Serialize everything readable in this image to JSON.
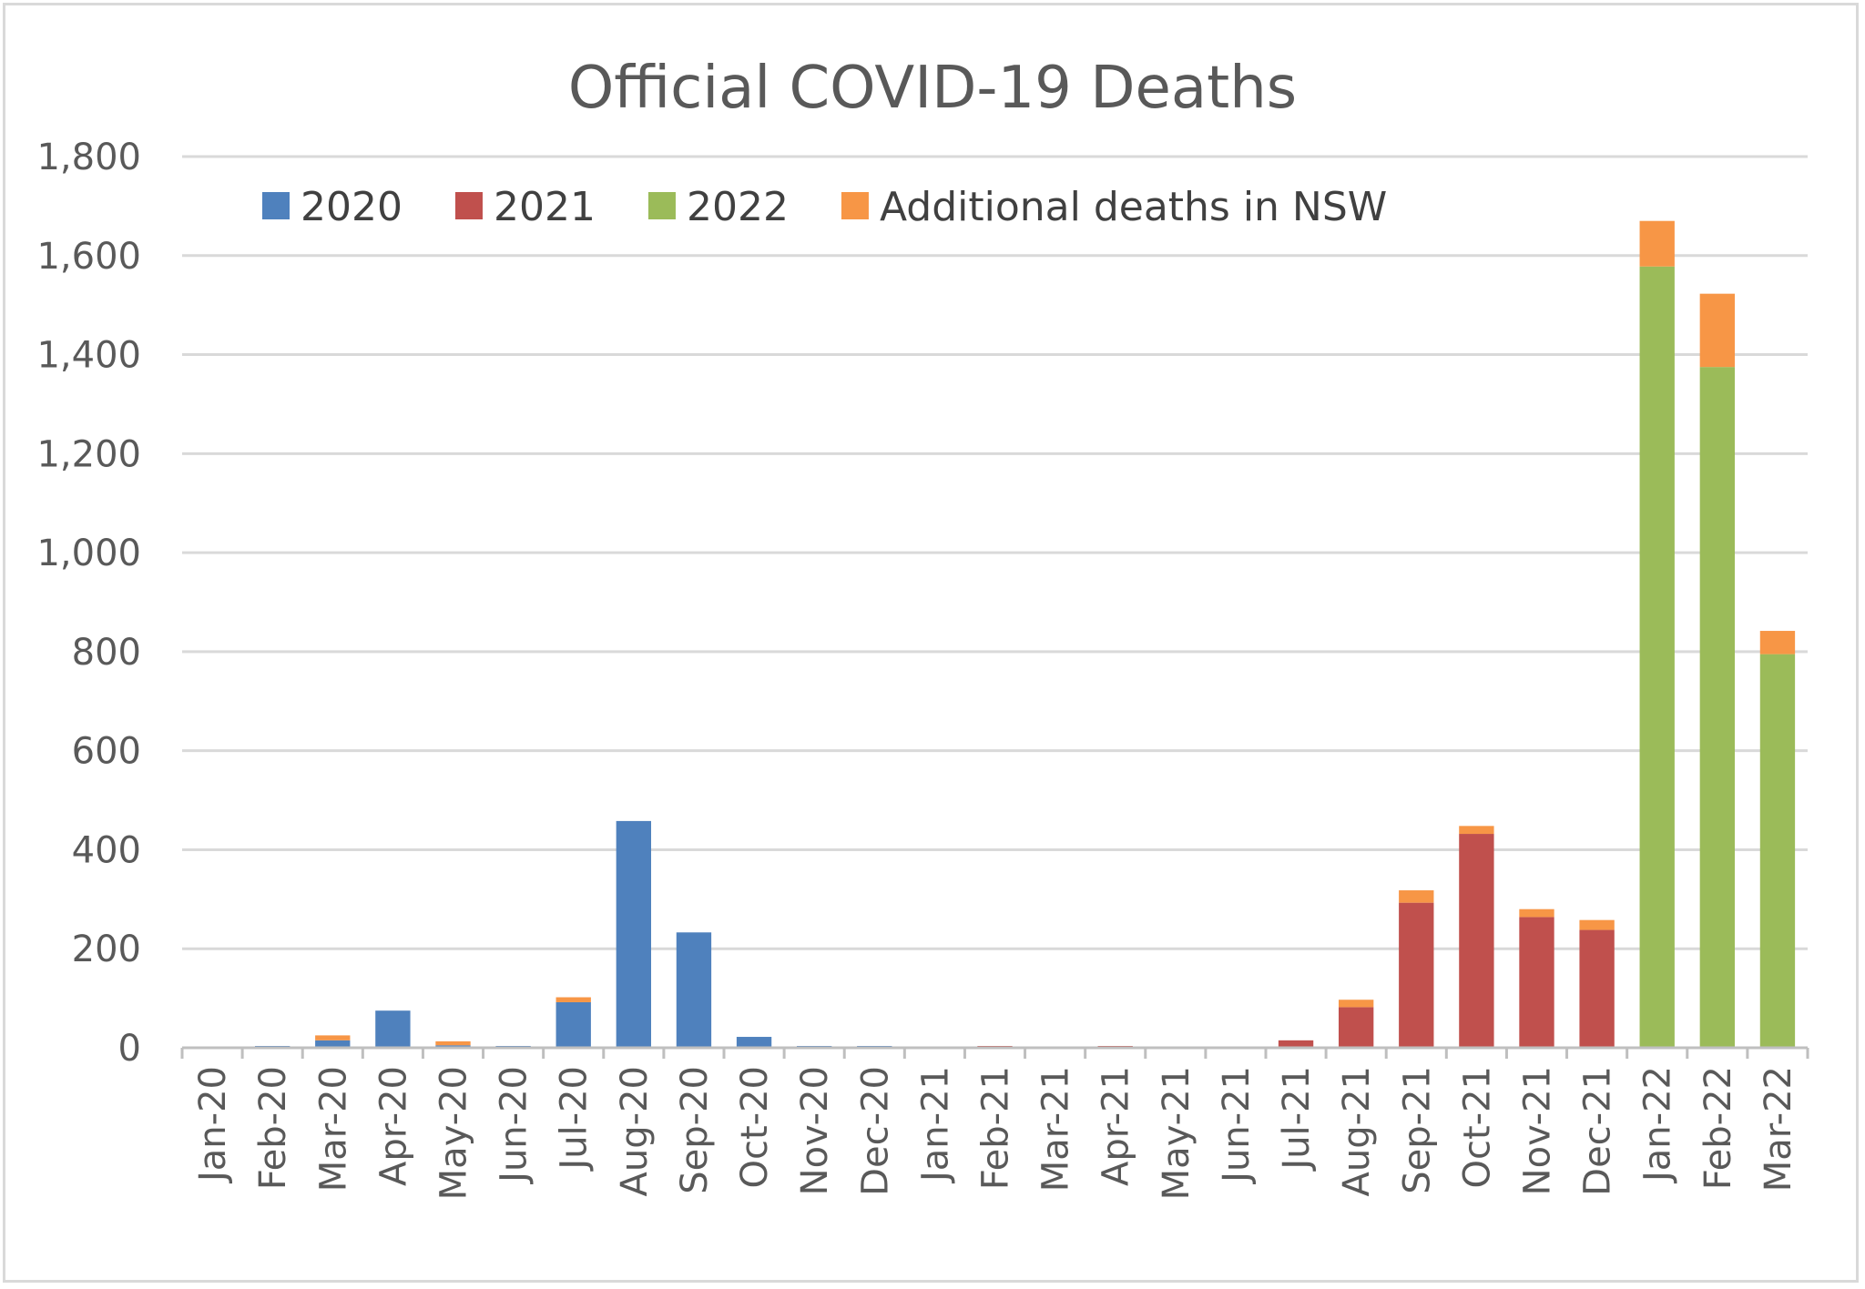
{
  "chart_data": {
    "type": "bar",
    "stacked": true,
    "title": "Official COVID-19 Deaths",
    "xlabel": "",
    "ylabel": "",
    "ylim": [
      0,
      1800
    ],
    "y_ticks": [
      "0",
      "200",
      "400",
      "600",
      "800",
      "1,000",
      "1,200",
      "1,400",
      "1,600",
      "1,800"
    ],
    "grid": true,
    "legend_position": "top-left",
    "categories": [
      "Jan-20",
      "Feb-20",
      "Mar-20",
      "Apr-20",
      "May-20",
      "Jun-20",
      "Jul-20",
      "Aug-20",
      "Sep-20",
      "Oct-20",
      "Nov-20",
      "Dec-20",
      "Jan-21",
      "Feb-21",
      "Mar-21",
      "Apr-21",
      "May-21",
      "Jun-21",
      "Jul-21",
      "Aug-21",
      "Sep-21",
      "Oct-21",
      "Nov-21",
      "Dec-21",
      "Jan-22",
      "Feb-22",
      "Mar-22"
    ],
    "series": [
      {
        "name": "2020",
        "color": "#4f81bd",
        "values": [
          0,
          3,
          15,
          75,
          5,
          2,
          92,
          458,
          233,
          22,
          3,
          3,
          0,
          0,
          0,
          0,
          0,
          0,
          0,
          0,
          0,
          0,
          0,
          0,
          0,
          0,
          0
        ]
      },
      {
        "name": "2021",
        "color": "#c0504d",
        "values": [
          0,
          0,
          0,
          0,
          0,
          0,
          0,
          0,
          0,
          0,
          0,
          0,
          0,
          1,
          0,
          3,
          0,
          0,
          15,
          82,
          293,
          432,
          264,
          238,
          0,
          0,
          0
        ]
      },
      {
        "name": "2022",
        "color": "#9bbb59",
        "values": [
          0,
          0,
          0,
          0,
          0,
          0,
          0,
          0,
          0,
          0,
          0,
          0,
          0,
          0,
          0,
          0,
          0,
          0,
          0,
          0,
          0,
          0,
          0,
          0,
          1578,
          1375,
          795
        ]
      },
      {
        "name": "Additional deaths in NSW",
        "color": "#f79646",
        "values": [
          0,
          0,
          10,
          0,
          8,
          0,
          10,
          0,
          0,
          0,
          0,
          0,
          0,
          0,
          0,
          0,
          0,
          0,
          0,
          15,
          25,
          16,
          16,
          20,
          92,
          148,
          47
        ]
      }
    ]
  }
}
